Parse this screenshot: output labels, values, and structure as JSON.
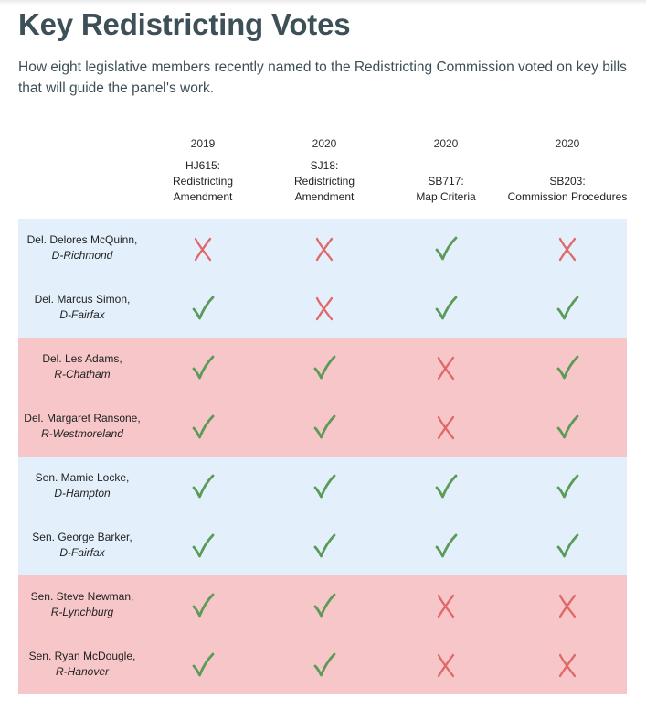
{
  "title": "Key Redistricting Votes",
  "subtitle": "How eight legislative members recently named to the Redistricting Commission voted on key bills that will guide the panel's work.",
  "colors": {
    "yes": "#5b9a57",
    "no": "#e06868",
    "democrat_row": "#e3f0fb",
    "republican_row": "#f6c6c8",
    "title": "#3d4f57"
  },
  "bills": [
    {
      "year": "2019",
      "lines": [
        "HJ615:",
        "Redistricting",
        "Amendment"
      ]
    },
    {
      "year": "2020",
      "lines": [
        "SJ18:",
        "Redistricting",
        "Amendment"
      ]
    },
    {
      "year": "2020",
      "lines": [
        "SB717:",
        "Map Criteria"
      ]
    },
    {
      "year": "2020",
      "lines": [
        "SB203:",
        "Commission Procedures"
      ]
    }
  ],
  "members": [
    {
      "name": "Del. Delores McQuinn,",
      "district": "D-Richmond",
      "party": "D",
      "votes": [
        "no",
        "no",
        "yes",
        "no"
      ]
    },
    {
      "name": "Del. Marcus Simon,",
      "district": "D-Fairfax",
      "party": "D",
      "votes": [
        "yes",
        "no",
        "yes",
        "yes"
      ]
    },
    {
      "name": "Del. Les Adams,",
      "district": "R-Chatham",
      "party": "R",
      "votes": [
        "yes",
        "yes",
        "no",
        "yes"
      ]
    },
    {
      "name": "Del. Margaret Ransone,",
      "district": "R-Westmoreland",
      "party": "R",
      "votes": [
        "yes",
        "yes",
        "no",
        "yes"
      ]
    },
    {
      "name": "Sen. Mamie Locke,",
      "district": "D-Hampton",
      "party": "D",
      "votes": [
        "yes",
        "yes",
        "yes",
        "yes"
      ]
    },
    {
      "name": "Sen. George Barker,",
      "district": "D-Fairfax",
      "party": "D",
      "votes": [
        "yes",
        "yes",
        "yes",
        "yes"
      ]
    },
    {
      "name": "Sen. Steve Newman,",
      "district": "R-Lynchburg",
      "party": "R",
      "votes": [
        "yes",
        "yes",
        "no",
        "no"
      ]
    },
    {
      "name": "Sen. Ryan McDougle,",
      "district": "R-Hanover",
      "party": "R",
      "votes": [
        "yes",
        "yes",
        "no",
        "no"
      ]
    }
  ]
}
